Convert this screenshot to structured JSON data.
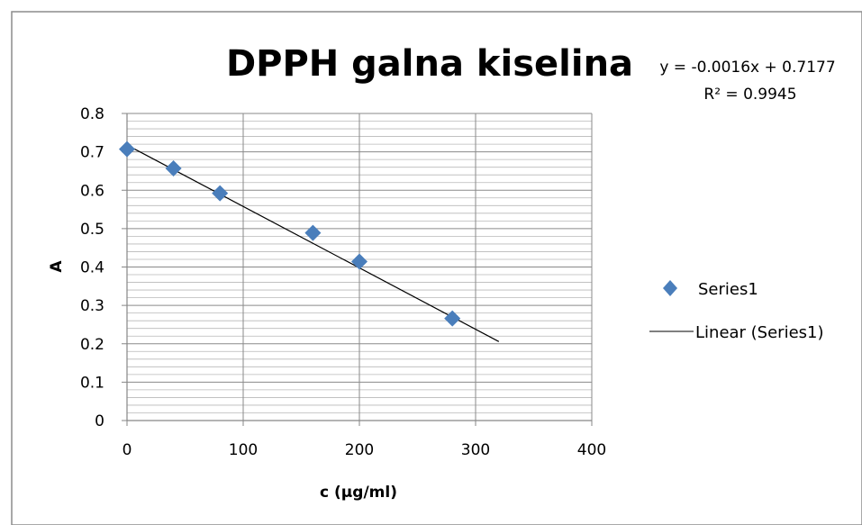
{
  "chart_data": {
    "type": "scatter",
    "title": "DPPH galna kiselina",
    "xlabel": "c (μg/ml)",
    "ylabel": "A",
    "xlim": [
      0,
      400
    ],
    "ylim": [
      0,
      0.8
    ],
    "xticks": [
      "0",
      "100",
      "200",
      "300",
      "400"
    ],
    "yticks": [
      "0",
      "0.1",
      "0.2",
      "0.3",
      "0.4",
      "0.5",
      "0.6",
      "0.7",
      "0.8"
    ],
    "series": [
      {
        "name": "Series1",
        "color": "#4a7ebb",
        "marker": "diamond",
        "x": [
          0,
          40,
          80,
          160,
          200,
          280
        ],
        "y": [
          0.707,
          0.657,
          0.592,
          0.489,
          0.414,
          0.266
        ]
      }
    ],
    "trendline": {
      "name": "Linear (Series1)",
      "slope": -0.0016,
      "intercept": 0.7177,
      "x_range": [
        0,
        320
      ],
      "equation": "y = -0.0016x + 0.7177",
      "r_squared": "R² = 0.9945",
      "color": "#000000"
    },
    "grid": true,
    "legend_position": "right"
  }
}
